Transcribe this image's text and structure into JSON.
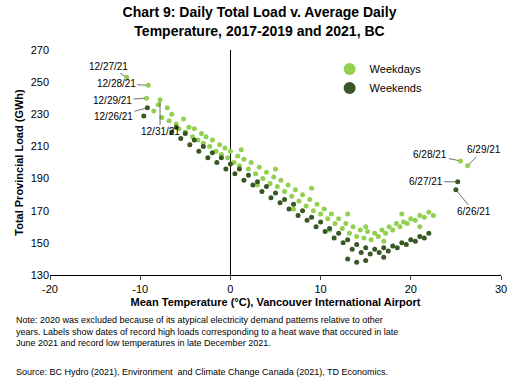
{
  "chart_data": {
    "type": "scatter",
    "title": [
      "Chart 9: Daily Total Load v. Average Daily",
      "Temperature, 2017-2019 and 2021, BC"
    ],
    "x_label": "Mean Temperature (°C), Vancouver International Airport",
    "y_label": "Total Provincial Load (GWh)",
    "xlim": [
      -20,
      30
    ],
    "xticks": [
      -20,
      -10,
      0,
      10,
      20,
      30
    ],
    "ylim": [
      130,
      270
    ],
    "yticks": [
      130,
      150,
      170,
      190,
      210,
      230,
      250,
      270
    ],
    "grid": false,
    "legend": "top right",
    "marker": "circle",
    "series": [
      {
        "name": "Weekdays",
        "color": "#92D050",
        "x": [
          -11.5,
          -9.1,
          -9.3,
          -7.8,
          25.5,
          26.3,
          -8.5,
          -8,
          -7.6,
          -7,
          -6.8,
          -6.5,
          -6,
          -5.7,
          -5.2,
          -5,
          -4.6,
          -4.2,
          -4,
          -3.6,
          -3.2,
          -3,
          -2.7,
          -2.3,
          -2,
          -1.6,
          -1.2,
          -1,
          -0.6,
          -0.3,
          0,
          0.4,
          0.8,
          1,
          1.5,
          2,
          2.3,
          2.8,
          3.2,
          3.6,
          4,
          4.4,
          4.8,
          5.2,
          5.6,
          6,
          6.4,
          6.8,
          7.2,
          7.6,
          8,
          8.4,
          8.8,
          9.2,
          9.6,
          10,
          10.4,
          10.8,
          11.2,
          11.6,
          12,
          12.4,
          12.8,
          13.2,
          13.6,
          14,
          14.4,
          14.8,
          15.2,
          15.6,
          16,
          16.4,
          16.8,
          17.2,
          17.6,
          18,
          18.4,
          18.8,
          19.2,
          19.6,
          20,
          20.5,
          21,
          21.5,
          22,
          22.5,
          1.2,
          3,
          5,
          7,
          9,
          11,
          13,
          15,
          17,
          19,
          21
        ],
        "values": [
          253,
          248,
          240,
          239,
          201,
          198,
          232,
          236,
          228,
          234,
          226,
          230,
          224,
          221,
          227,
          219,
          222,
          216,
          221,
          214,
          218,
          212,
          216,
          210,
          214,
          207,
          211,
          205,
          209,
          203,
          207,
          200,
          204,
          198,
          202,
          196,
          200,
          193,
          197,
          190,
          194,
          187,
          191,
          185,
          189,
          182,
          186,
          179,
          183,
          176,
          180,
          173,
          177,
          170,
          174,
          168,
          171,
          165,
          168,
          162,
          165,
          159,
          162,
          156,
          160,
          154,
          158,
          153,
          157,
          152,
          156,
          154,
          158,
          156,
          160,
          158,
          162,
          160,
          163,
          162,
          165,
          164,
          167,
          166,
          169,
          167,
          208,
          186,
          196,
          171,
          184,
          158,
          168,
          160,
          151,
          168,
          160
        ]
      },
      {
        "name": "Weekends",
        "color": "#385723",
        "x": [
          -9.2,
          25.2,
          25,
          -9.6,
          -6.5,
          -6,
          -5.5,
          -5,
          -4.5,
          -4,
          -3.5,
          -3,
          -2.5,
          -2,
          -1.5,
          -1,
          -0.5,
          0,
          0.5,
          1,
          1.5,
          2,
          2.5,
          3,
          3.5,
          4,
          4.5,
          5,
          5.5,
          6,
          6.5,
          7,
          7.5,
          8,
          8.5,
          9,
          9.5,
          10,
          10.5,
          11,
          11.5,
          12,
          12.5,
          13,
          13.5,
          14,
          14,
          14.5,
          15,
          15.5,
          16,
          16.5,
          17,
          17.5,
          18,
          18.5,
          19,
          19.5,
          20,
          20.5,
          21,
          21.5,
          22,
          13,
          15,
          17
        ],
        "values": [
          234,
          188,
          183,
          229,
          219,
          222,
          215,
          218,
          211,
          214,
          207,
          210,
          203,
          206,
          200,
          203,
          196,
          199,
          193,
          196,
          189,
          192,
          186,
          188,
          182,
          185,
          178,
          181,
          175,
          177,
          171,
          174,
          167,
          170,
          164,
          166,
          160,
          163,
          157,
          159,
          153,
          156,
          150,
          152,
          146,
          149,
          138,
          144,
          147,
          143,
          146,
          144,
          147,
          145,
          148,
          147,
          150,
          149,
          152,
          151,
          154,
          153,
          156,
          140,
          139,
          141
        ]
      }
    ],
    "annotations": [
      {
        "text": "12/27/21",
        "x": -11.5,
        "y": 253
      },
      {
        "text": "12/28/21",
        "x": -9.1,
        "y": 248
      },
      {
        "text": "12/29/21",
        "x": -9.3,
        "y": 240
      },
      {
        "text": "12/26/21",
        "x": -9.2,
        "y": 234
      },
      {
        "text": "12/31/21",
        "x": -7.8,
        "y": 239
      },
      {
        "text": "6/28/21",
        "x": 25.5,
        "y": 201
      },
      {
        "text": "6/29/21",
        "x": 26.3,
        "y": 198
      },
      {
        "text": "6/27/21",
        "x": 25.2,
        "y": 188
      },
      {
        "text": "6/26/21",
        "x": 25,
        "y": 183
      }
    ],
    "note": [
      "Note: 2020 was excluded because of its atypical electricity demand patterns relative to other",
      "years. Labels show dates of record high loads corresponding to a heat wave that occured in late",
      "June 2021 and record low temperatures in late December 2021."
    ],
    "source": "Source: BC Hydro (2021), Environment  and Climate Change Canada (2021), TD Economics."
  }
}
